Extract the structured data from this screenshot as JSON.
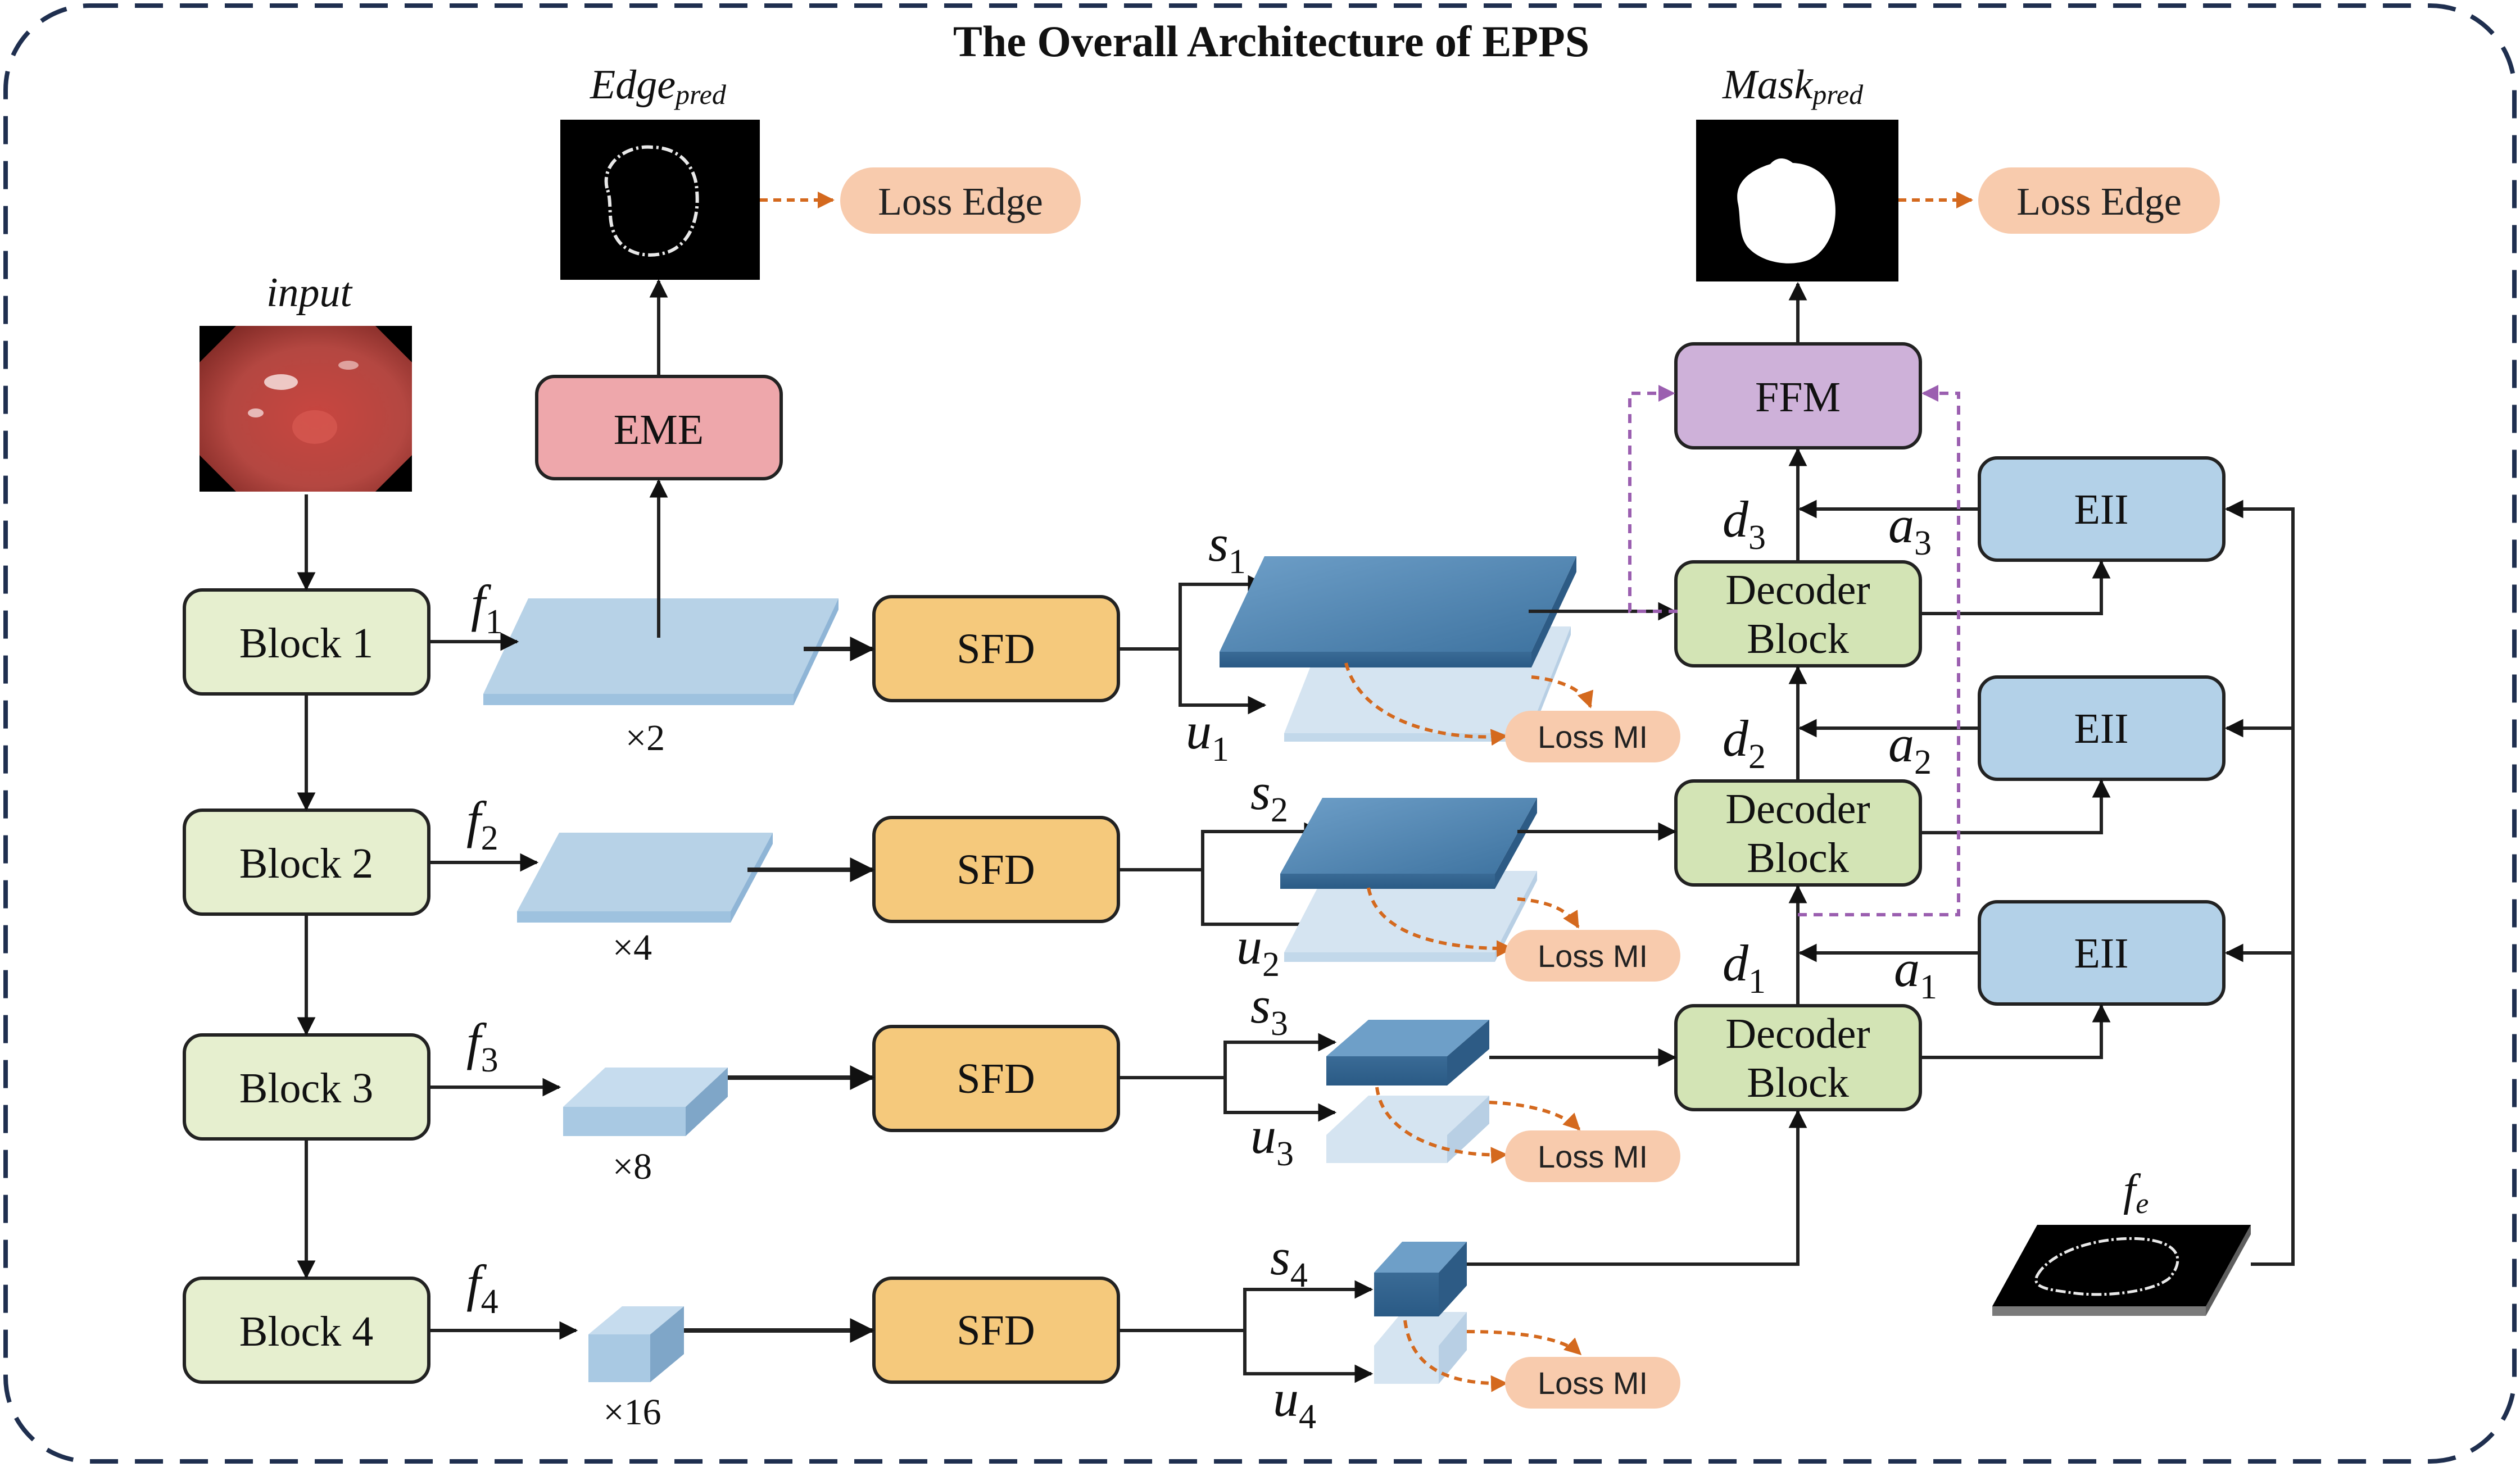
{
  "title": "The Overall Architecture of EPPS",
  "images": {
    "input": {
      "label": "input"
    },
    "edge_pred": {
      "label_main": "Edge",
      "label_sub": "pred"
    },
    "mask_pred": {
      "label_main": "Mask",
      "label_sub": "pred"
    },
    "fe": {
      "label_main": "f",
      "label_sub": "e"
    }
  },
  "blocks": [
    "Block 1",
    "Block 2",
    "Block 3",
    "Block 4"
  ],
  "features": [
    {
      "name": "f",
      "sub": "1",
      "scale": "×2"
    },
    {
      "name": "f",
      "sub": "2",
      "scale": "×4"
    },
    {
      "name": "f",
      "sub": "3",
      "scale": "×8"
    },
    {
      "name": "f",
      "sub": "4",
      "scale": "×16"
    }
  ],
  "sfd": [
    "SFD",
    "SFD",
    "SFD",
    "SFD"
  ],
  "eme": "EME",
  "ffm": "FFM",
  "s_outputs": [
    {
      "name": "s",
      "sub": "1"
    },
    {
      "name": "s",
      "sub": "2"
    },
    {
      "name": "s",
      "sub": "3"
    },
    {
      "name": "s",
      "sub": "4"
    }
  ],
  "u_outputs": [
    {
      "name": "u",
      "sub": "1"
    },
    {
      "name": "u",
      "sub": "2"
    },
    {
      "name": "u",
      "sub": "3"
    },
    {
      "name": "u",
      "sub": "4"
    }
  ],
  "loss_mi": [
    "Loss MI",
    "Loss MI",
    "Loss MI",
    "Loss MI"
  ],
  "loss_edge": [
    "Loss Edge",
    "Loss Edge"
  ],
  "decoders": [
    {
      "line1": "Decoder",
      "line2": "Block"
    },
    {
      "line1": "Decoder",
      "line2": "Block"
    },
    {
      "line1": "Decoder",
      "line2": "Block"
    }
  ],
  "d_outputs": [
    {
      "name": "d",
      "sub": "3"
    },
    {
      "name": "d",
      "sub": "2"
    },
    {
      "name": "d",
      "sub": "1"
    }
  ],
  "eii": [
    "EII",
    "EII",
    "EII"
  ],
  "a_outputs": [
    {
      "name": "a",
      "sub": "3"
    },
    {
      "name": "a",
      "sub": "2"
    },
    {
      "name": "a",
      "sub": "1"
    }
  ],
  "colors": {
    "block_fill": "#e6efcf",
    "sfd_fill": "#f5c97c",
    "eme_fill": "#eea7ab",
    "ffm_fill": "#ceb1d9",
    "decoder_fill": "#d3e4b5",
    "eii_fill": "#b3d1e8",
    "loss_fill": "#f8cbad",
    "feature_light": "#b7d2e7",
    "feature_dark": "#3f77a6",
    "orange_arrow": "#d4691e",
    "purple_dash": "#9b5fb0",
    "border_dash": "#1f2f4f"
  }
}
